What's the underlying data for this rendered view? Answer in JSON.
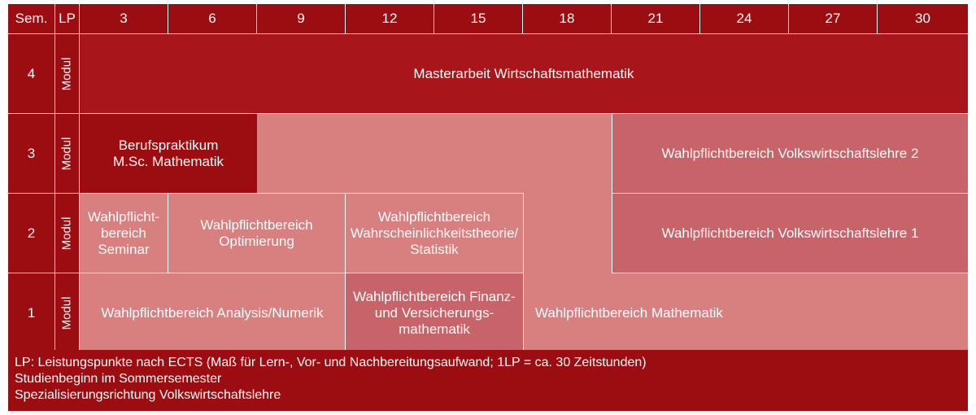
{
  "header": {
    "sem_label": "Sem.",
    "lp_label": "LP",
    "columns": [
      "3",
      "6",
      "9",
      "12",
      "15",
      "18",
      "21",
      "24",
      "27",
      "30"
    ]
  },
  "semesters": [
    "4",
    "3",
    "2",
    "1"
  ],
  "modul_label": "Modul",
  "modules": {
    "masterarbeit": "Masterarbeit Wirtschaftsmathematik",
    "berufspraktikum": "Berufspraktikum\nM.Sc. Mathematik",
    "vwl2": "Wahlpflichtbereich Volkswirtschaftslehre 2",
    "seminar": "Wahlpflicht-\nbereich\nSeminar",
    "optimierung": "Wahlpflichtbereich\nOptimierung",
    "wahrscheinlichkeit": "Wahlpflichtbereich\nWahrscheinlichkeitstheorie/\nStatistik",
    "vwl1": "Wahlpflichtbereich Volkswirtschaftslehre 1",
    "analysis": "Wahlpflichtbereich Analysis/Numerik",
    "finanz": "Wahlpflichtbereich Finanz-\nund Versicherungs-\nmathematik",
    "mathematik": "Wahlpflichtbereich Mathematik"
  },
  "footer": {
    "line1": "LP: Leistungspunkte nach ECTS (Maß für Lern-, Vor- und Nachbereitungsaufwand; 1LP = ca. 30 Zeitstunden)",
    "line2": "Studienbeginn im Sommersemester",
    "line3": "Spezialisierungsrichtung Volkswirtschaftslehre"
  },
  "colors": {
    "dark": "#9c0d12",
    "mid": "#c7646a",
    "light": "#d88080"
  }
}
